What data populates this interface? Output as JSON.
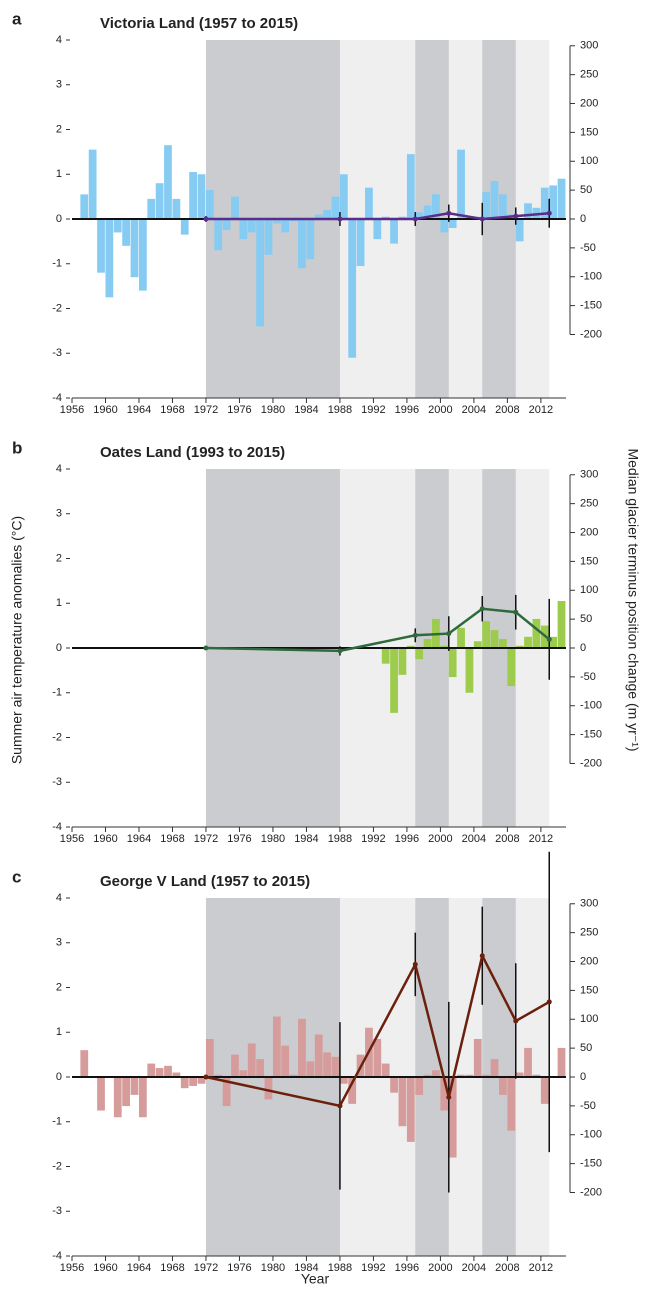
{
  "y_label": "Summer air temperature  anomalies (°C)",
  "y2_label": "Median glacier terminus position change (m yr⁻¹)",
  "x_label": "Year",
  "bands": [
    {
      "from": 1972,
      "to": 2013,
      "color": "#efeff0"
    },
    {
      "from": 1972,
      "to": 1988,
      "color": "#cbccd0"
    },
    {
      "from": 1997,
      "to": 2001,
      "color": "#cbccd0"
    },
    {
      "from": 2005,
      "to": 2009,
      "color": "#cbccd0"
    }
  ],
  "chart_data": [
    {
      "type": "bar",
      "letter": "a",
      "title": "Victoria Land (1957 to 2015)",
      "xlim": [
        1956,
        2015
      ],
      "xticks": [
        1956,
        1960,
        1964,
        1968,
        1972,
        1976,
        1980,
        1984,
        1988,
        1992,
        1996,
        2000,
        2004,
        2008,
        2012
      ],
      "ylim": [
        -4,
        4
      ],
      "yticks": [
        4,
        3,
        2,
        1,
        0,
        -1,
        -2,
        -3,
        -4
      ],
      "y2lim": [
        -310,
        310
      ],
      "y2ticks": [
        300,
        250,
        200,
        150,
        100,
        50,
        0,
        -50,
        -100,
        -150,
        -200
      ],
      "bars": {
        "color": "#86cbf2",
        "x": [
          1957,
          1958,
          1959,
          1960,
          1961,
          1962,
          1963,
          1964,
          1965,
          1966,
          1967,
          1968,
          1969,
          1970,
          1971,
          1972,
          1973,
          1974,
          1975,
          1976,
          1977,
          1978,
          1979,
          1980,
          1981,
          1982,
          1983,
          1984,
          1985,
          1986,
          1987,
          1988,
          1989,
          1990,
          1991,
          1992,
          1993,
          1994,
          1995,
          1996,
          1997,
          1998,
          1999,
          2000,
          2001,
          2002,
          2003,
          2004,
          2005,
          2006,
          2007,
          2008,
          2009,
          2010,
          2011,
          2012,
          2013,
          2014
        ],
        "values": [
          0.55,
          1.55,
          -1.2,
          -1.75,
          -0.3,
          -0.6,
          -1.3,
          -1.6,
          0.45,
          0.8,
          1.65,
          0.45,
          -0.35,
          1.05,
          1.0,
          0.65,
          -0.7,
          -0.25,
          0.5,
          -0.45,
          -0.3,
          -2.4,
          -0.8,
          -0.1,
          -0.3,
          -0.05,
          -1.1,
          -0.9,
          0.1,
          0.2,
          0.5,
          1.0,
          -3.1,
          -1.05,
          0.7,
          -0.45,
          0.05,
          -0.55,
          0.05,
          1.45,
          0.15,
          0.3,
          0.55,
          -0.3,
          -0.2,
          1.55,
          0.05,
          0.05,
          0.6,
          0.85,
          0.55,
          0.1,
          -0.5,
          0.35,
          0.25,
          0.7,
          0.75,
          0.9
        ]
      },
      "line": {
        "color": "#5a2d8c",
        "axis": "y2",
        "x": [
          1972,
          1988,
          1997,
          2001,
          2005,
          2009,
          2013
        ],
        "values": [
          0,
          0,
          0,
          10,
          0,
          5,
          10
        ],
        "errors": [
          5,
          12,
          12,
          15,
          28,
          15,
          25
        ]
      }
    },
    {
      "type": "bar",
      "letter": "b",
      "title": "Oates Land (1993 to 2015)",
      "xlim": [
        1956,
        2015
      ],
      "xticks": [
        1956,
        1960,
        1964,
        1968,
        1972,
        1976,
        1980,
        1984,
        1988,
        1992,
        1996,
        2000,
        2004,
        2008,
        2012
      ],
      "ylim": [
        -4,
        4
      ],
      "yticks": [
        4,
        3,
        2,
        1,
        0,
        -1,
        -2,
        -3,
        -4
      ],
      "y2lim": [
        -310,
        310
      ],
      "y2ticks": [
        300,
        250,
        200,
        150,
        100,
        50,
        0,
        -50,
        -100,
        -150,
        -200
      ],
      "bars": {
        "color": "#9dcb4c",
        "x": [
          1993,
          1994,
          1995,
          1996,
          1997,
          1998,
          1999,
          2000,
          2001,
          2002,
          2003,
          2004,
          2005,
          2006,
          2007,
          2008,
          2009,
          2010,
          2011,
          2012,
          2013,
          2014
        ],
        "values": [
          -0.35,
          -1.45,
          -0.6,
          0.05,
          -0.25,
          0.2,
          0.65,
          0.05,
          -0.65,
          0.45,
          -1.0,
          0.15,
          0.6,
          0.4,
          0.2,
          -0.85,
          0.05,
          0.25,
          0.65,
          0.5,
          0.25,
          1.05
        ]
      },
      "line": {
        "color": "#2e6a3c",
        "axis": "y2",
        "x": [
          1972,
          1988,
          1997,
          2001,
          2005,
          2009,
          2013
        ],
        "values": [
          0,
          -5,
          22,
          25,
          68,
          62,
          15
        ],
        "errors": [
          3,
          8,
          12,
          30,
          22,
          30,
          70
        ]
      }
    },
    {
      "type": "bar",
      "letter": "c",
      "title": "George V Land (1957 to 2015)",
      "xlim": [
        1956,
        2015
      ],
      "xticks": [
        1956,
        1960,
        1964,
        1968,
        1972,
        1976,
        1980,
        1984,
        1988,
        1992,
        1996,
        2000,
        2004,
        2008,
        2012
      ],
      "ylim": [
        -4,
        4
      ],
      "yticks": [
        4,
        3,
        2,
        1,
        0,
        -1,
        -2,
        -3,
        -4
      ],
      "y2lim": [
        -310,
        310
      ],
      "y2ticks": [
        300,
        250,
        200,
        150,
        100,
        50,
        0,
        -50,
        -100,
        -150,
        -200
      ],
      "bars": {
        "color": "#d69c9c",
        "x": [
          1957,
          1958,
          1959,
          1960,
          1961,
          1962,
          1963,
          1964,
          1965,
          1966,
          1967,
          1968,
          1969,
          1970,
          1971,
          1972,
          1973,
          1974,
          1975,
          1976,
          1977,
          1978,
          1979,
          1980,
          1981,
          1982,
          1983,
          1984,
          1985,
          1986,
          1987,
          1988,
          1989,
          1990,
          1991,
          1992,
          1993,
          1994,
          1995,
          1996,
          1997,
          1998,
          1999,
          2000,
          2001,
          2002,
          2003,
          2004,
          2005,
          2006,
          2007,
          2008,
          2009,
          2010,
          2011,
          2012,
          2013,
          2014
        ],
        "values": [
          0.6,
          0.02,
          -0.75,
          0.02,
          -0.9,
          -0.65,
          -0.4,
          -0.9,
          0.3,
          0.2,
          0.25,
          0.1,
          -0.25,
          -0.2,
          -0.15,
          0.85,
          0.05,
          -0.65,
          0.5,
          0.15,
          0.75,
          0.4,
          -0.5,
          1.35,
          0.7,
          0.05,
          1.3,
          0.35,
          0.95,
          0.55,
          0.45,
          -0.15,
          -0.6,
          0.5,
          1.1,
          0.85,
          0.3,
          -0.35,
          -1.1,
          -1.45,
          -0.4,
          0.05,
          0.15,
          -0.75,
          -1.8,
          0.05,
          0.05,
          0.85,
          0.05,
          0.4,
          -0.4,
          -1.2,
          0.1,
          0.65,
          0.05,
          -0.6,
          0.02,
          0.65
        ]
      },
      "line": {
        "color": "#6b200c",
        "axis": "y2",
        "x": [
          1972,
          1988,
          1997,
          2001,
          2005,
          2009,
          2013
        ],
        "values": [
          0,
          -50,
          195,
          -35,
          210,
          97,
          130
        ],
        "errors": [
          3,
          145,
          55,
          165,
          85,
          100,
          260
        ]
      }
    }
  ]
}
